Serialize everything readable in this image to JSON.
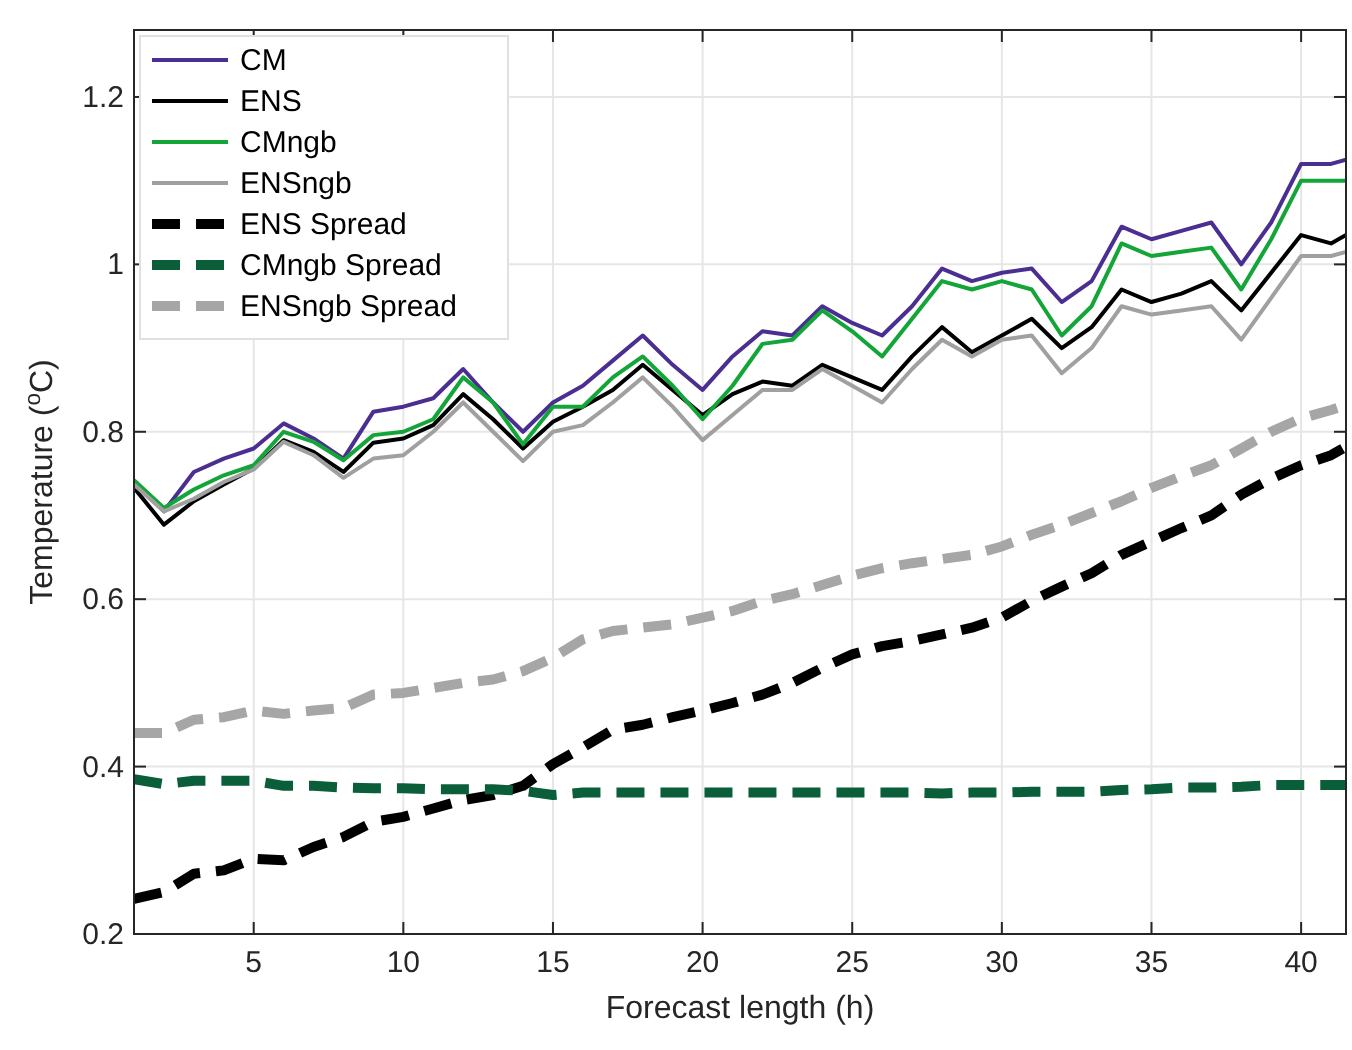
{
  "chart_data": {
    "type": "line",
    "xlabel": "Forecast length (h)",
    "ylabel": "Temperature ($^{o}$C)",
    "x": [
      1,
      2,
      3,
      4,
      5,
      6,
      7,
      8,
      9,
      10,
      11,
      12,
      13,
      14,
      15,
      16,
      17,
      18,
      19,
      20,
      21,
      22,
      23,
      24,
      25,
      26,
      27,
      28,
      29,
      30,
      31,
      32,
      33,
      34,
      35,
      36,
      37,
      38,
      39,
      40,
      41,
      41.5
    ],
    "xlim": [
      1,
      41.5
    ],
    "xticks": [
      5,
      10,
      15,
      20,
      25,
      30,
      35,
      40
    ],
    "ylim": [
      0.2,
      1.28
    ],
    "yticks": [
      0.2,
      0.4,
      0.6,
      0.8,
      1,
      1.2
    ],
    "grid": true,
    "legend": "top left",
    "series": [
      {
        "name": "CM",
        "color": "#4b2e91",
        "line_style": "solid",
        "values": [
          0.74,
          0.705,
          0.752,
          0.768,
          0.78,
          0.81,
          0.792,
          0.768,
          0.824,
          0.83,
          0.84,
          0.875,
          0.835,
          0.8,
          0.835,
          0.855,
          0.885,
          0.915,
          0.88,
          0.85,
          0.89,
          0.92,
          0.915,
          0.95,
          0.93,
          0.915,
          0.95,
          0.995,
          0.98,
          0.99,
          0.995,
          0.955,
          0.98,
          1.045,
          1.03,
          1.04,
          1.05,
          1.0,
          1.05,
          1.12,
          1.12,
          1.125
        ]
      },
      {
        "name": "ENS",
        "color": "#000000",
        "line_style": "solid",
        "values": [
          0.733,
          0.689,
          0.717,
          0.737,
          0.756,
          0.79,
          0.776,
          0.752,
          0.787,
          0.792,
          0.808,
          0.845,
          0.815,
          0.78,
          0.812,
          0.83,
          0.85,
          0.88,
          0.85,
          0.82,
          0.845,
          0.86,
          0.855,
          0.88,
          0.865,
          0.85,
          0.89,
          0.925,
          0.895,
          0.915,
          0.935,
          0.9,
          0.925,
          0.97,
          0.955,
          0.965,
          0.98,
          0.945,
          0.99,
          1.035,
          1.025,
          1.035
        ]
      },
      {
        "name": "CMngb",
        "color": "#13a538",
        "line_style": "solid",
        "values": [
          0.742,
          0.709,
          0.731,
          0.748,
          0.76,
          0.8,
          0.788,
          0.766,
          0.796,
          0.8,
          0.815,
          0.865,
          0.835,
          0.785,
          0.83,
          0.83,
          0.865,
          0.89,
          0.855,
          0.815,
          0.855,
          0.905,
          0.91,
          0.945,
          0.92,
          0.89,
          0.935,
          0.98,
          0.97,
          0.98,
          0.97,
          0.915,
          0.95,
          1.025,
          1.01,
          1.015,
          1.02,
          0.97,
          1.03,
          1.1,
          1.1,
          1.1
        ]
      },
      {
        "name": "ENSngb",
        "color": "#a0a0a0",
        "line_style": "solid",
        "values": [
          0.737,
          0.705,
          0.72,
          0.74,
          0.755,
          0.788,
          0.772,
          0.745,
          0.768,
          0.772,
          0.8,
          0.835,
          0.8,
          0.765,
          0.8,
          0.808,
          0.835,
          0.865,
          0.83,
          0.79,
          0.82,
          0.85,
          0.85,
          0.875,
          0.855,
          0.835,
          0.875,
          0.91,
          0.89,
          0.91,
          0.915,
          0.87,
          0.9,
          0.95,
          0.94,
          0.945,
          0.95,
          0.91,
          0.96,
          1.01,
          1.01,
          1.015
        ]
      },
      {
        "name": "ENS Spread",
        "color": "#000000",
        "line_style": "dashed",
        "values": [
          0.242,
          0.25,
          0.272,
          0.276,
          0.29,
          0.288,
          0.304,
          0.316,
          0.334,
          0.34,
          0.35,
          0.36,
          0.366,
          0.377,
          0.403,
          0.423,
          0.444,
          0.45,
          0.459,
          0.467,
          0.476,
          0.486,
          0.5,
          0.518,
          0.534,
          0.544,
          0.55,
          0.558,
          0.566,
          0.578,
          0.598,
          0.615,
          0.631,
          0.653,
          0.669,
          0.685,
          0.7,
          0.725,
          0.744,
          0.76,
          0.772,
          0.782
        ]
      },
      {
        "name": "CMngb Spread",
        "color": "#0b5e3a",
        "line_style": "dashed",
        "values": [
          0.385,
          0.379,
          0.383,
          0.383,
          0.383,
          0.377,
          0.377,
          0.375,
          0.374,
          0.374,
          0.373,
          0.373,
          0.373,
          0.371,
          0.366,
          0.369,
          0.369,
          0.369,
          0.369,
          0.369,
          0.369,
          0.369,
          0.369,
          0.369,
          0.369,
          0.369,
          0.369,
          0.368,
          0.369,
          0.369,
          0.37,
          0.37,
          0.37,
          0.372,
          0.373,
          0.375,
          0.375,
          0.376,
          0.378,
          0.378,
          0.378,
          0.378
        ]
      },
      {
        "name": "ENSngb Spread",
        "color": "#a6a6a6",
        "line_style": "dashed",
        "values": [
          0.44,
          0.44,
          0.456,
          0.459,
          0.467,
          0.463,
          0.467,
          0.47,
          0.486,
          0.488,
          0.494,
          0.5,
          0.504,
          0.514,
          0.53,
          0.552,
          0.562,
          0.566,
          0.57,
          0.578,
          0.586,
          0.598,
          0.606,
          0.617,
          0.628,
          0.637,
          0.643,
          0.648,
          0.653,
          0.663,
          0.677,
          0.689,
          0.703,
          0.717,
          0.733,
          0.747,
          0.76,
          0.78,
          0.8,
          0.816,
          0.826,
          0.832
        ]
      }
    ]
  }
}
